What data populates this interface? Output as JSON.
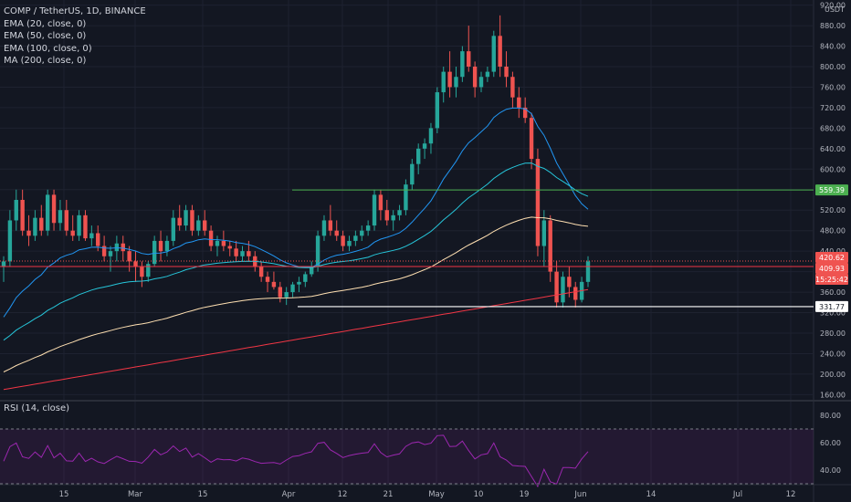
{
  "header": {
    "symbol_line": "COMP / TetherUS, 1D, BINANCE",
    "indicators": [
      "EMA (20, close, 0)",
      "EMA (50, close, 0)",
      "EMA (100, close, 0)",
      "MA (200, close, 0)"
    ],
    "rsi_label": "RSI (14, close)"
  },
  "price_axis": {
    "currency": "USDT",
    "ticks": [
      "920.00",
      "880.00",
      "840.00",
      "800.00",
      "760.00",
      "720.00",
      "680.00",
      "640.00",
      "600.00",
      "560.00",
      "520.00",
      "480.00",
      "440.00",
      "400.00",
      "360.00",
      "320.00",
      "280.00",
      "240.00",
      "200.00",
      "160.00"
    ],
    "badges": {
      "resistance_green": "559.39",
      "last_price": "420.62",
      "red_level": "409.93",
      "countdown": "15:25:42",
      "support_white": "331.77"
    }
  },
  "rsi_axis": {
    "ticks": [
      "80.00",
      "60.00",
      "40.00"
    ]
  },
  "time_axis": {
    "ticks": [
      "15",
      "Mar",
      "15",
      "Apr",
      "12",
      "21",
      "May",
      "10",
      "19",
      "Jun",
      "14",
      "Jul",
      "12"
    ]
  },
  "colors": {
    "background": "#131722",
    "up": "#26a69a",
    "down": "#ef5350",
    "ema20": "#2196f3",
    "ema50": "#26c6da",
    "ema100": "#ffe0b2",
    "ma200": "#f23645",
    "rsi": "#9c27b0",
    "green_level": "#4caf50",
    "red_level": "#f23645",
    "white_level": "#ffffff"
  },
  "chart_data": {
    "type": "candlestick",
    "title": "COMP / TetherUS, 1D, BINANCE",
    "ylim": [
      150,
      930
    ],
    "horizontal_levels": [
      {
        "name": "resistance",
        "value": 559.39,
        "color": "green"
      },
      {
        "name": "level",
        "value": 409.93,
        "color": "red"
      },
      {
        "name": "support",
        "value": 331.77,
        "color": "white"
      }
    ],
    "ohlc_approx": [
      [
        410,
        430,
        380,
        420
      ],
      [
        420,
        520,
        410,
        500
      ],
      [
        500,
        560,
        480,
        540
      ],
      [
        540,
        560,
        470,
        480
      ],
      [
        480,
        510,
        450,
        470
      ],
      [
        470,
        520,
        460,
        505
      ],
      [
        505,
        530,
        470,
        480
      ],
      [
        480,
        560,
        470,
        550
      ],
      [
        550,
        560,
        480,
        495
      ],
      [
        495,
        540,
        480,
        520
      ],
      [
        520,
        540,
        470,
        480
      ],
      [
        480,
        510,
        460,
        470
      ],
      [
        470,
        520,
        460,
        510
      ],
      [
        510,
        520,
        460,
        465
      ],
      [
        465,
        490,
        450,
        475
      ],
      [
        475,
        490,
        440,
        450
      ],
      [
        450,
        470,
        420,
        430
      ],
      [
        430,
        450,
        400,
        440
      ],
      [
        440,
        470,
        420,
        455
      ],
      [
        455,
        470,
        420,
        440
      ],
      [
        440,
        450,
        400,
        420
      ],
      [
        420,
        440,
        380,
        410
      ],
      [
        410,
        420,
        370,
        390
      ],
      [
        390,
        420,
        380,
        415
      ],
      [
        415,
        470,
        410,
        460
      ],
      [
        460,
        480,
        420,
        440
      ],
      [
        440,
        470,
        430,
        460
      ],
      [
        460,
        520,
        450,
        505
      ],
      [
        505,
        530,
        480,
        490
      ],
      [
        490,
        530,
        480,
        520
      ],
      [
        520,
        530,
        470,
        480
      ],
      [
        480,
        510,
        470,
        500
      ],
      [
        500,
        520,
        470,
        480
      ],
      [
        480,
        490,
        440,
        450
      ],
      [
        450,
        470,
        430,
        460
      ],
      [
        460,
        480,
        440,
        450
      ],
      [
        450,
        460,
        430,
        445
      ],
      [
        445,
        460,
        420,
        430
      ],
      [
        430,
        450,
        420,
        440
      ],
      [
        440,
        460,
        420,
        430
      ],
      [
        430,
        440,
        400,
        410
      ],
      [
        410,
        420,
        380,
        390
      ],
      [
        390,
        400,
        360,
        380
      ],
      [
        380,
        400,
        365,
        370
      ],
      [
        370,
        380,
        340,
        350
      ],
      [
        350,
        370,
        335,
        360
      ],
      [
        360,
        380,
        350,
        375
      ],
      [
        375,
        390,
        360,
        380
      ],
      [
        380,
        400,
        370,
        395
      ],
      [
        395,
        420,
        390,
        410
      ],
      [
        410,
        480,
        400,
        470
      ],
      [
        470,
        510,
        460,
        500
      ],
      [
        500,
        530,
        470,
        480
      ],
      [
        480,
        500,
        460,
        470
      ],
      [
        470,
        480,
        440,
        450
      ],
      [
        450,
        470,
        440,
        460
      ],
      [
        460,
        480,
        450,
        470
      ],
      [
        470,
        490,
        460,
        480
      ],
      [
        480,
        500,
        470,
        490
      ],
      [
        490,
        560,
        480,
        550
      ],
      [
        550,
        560,
        500,
        520
      ],
      [
        520,
        540,
        490,
        500
      ],
      [
        500,
        520,
        480,
        510
      ],
      [
        510,
        530,
        500,
        520
      ],
      [
        520,
        580,
        510,
        570
      ],
      [
        570,
        620,
        560,
        610
      ],
      [
        610,
        650,
        590,
        640
      ],
      [
        640,
        660,
        620,
        650
      ],
      [
        650,
        690,
        630,
        680
      ],
      [
        680,
        760,
        670,
        750
      ],
      [
        750,
        800,
        730,
        790
      ],
      [
        790,
        830,
        740,
        760
      ],
      [
        760,
        800,
        740,
        780
      ],
      [
        780,
        840,
        770,
        830
      ],
      [
        830,
        880,
        790,
        800
      ],
      [
        800,
        810,
        740,
        760
      ],
      [
        760,
        790,
        750,
        780
      ],
      [
        780,
        800,
        770,
        790
      ],
      [
        790,
        870,
        780,
        860
      ],
      [
        860,
        900,
        780,
        800
      ],
      [
        800,
        830,
        760,
        780
      ],
      [
        780,
        790,
        720,
        740
      ],
      [
        740,
        760,
        700,
        720
      ],
      [
        720,
        740,
        690,
        700
      ],
      [
        700,
        710,
        600,
        620
      ],
      [
        620,
        640,
        430,
        450
      ],
      [
        450,
        520,
        410,
        500
      ],
      [
        500,
        510,
        380,
        400
      ],
      [
        400,
        420,
        330,
        340
      ],
      [
        340,
        400,
        330,
        390
      ],
      [
        390,
        410,
        350,
        370
      ],
      [
        370,
        380,
        330,
        345
      ],
      [
        345,
        390,
        340,
        380
      ],
      [
        380,
        430,
        370,
        420
      ]
    ],
    "rsi_ylim": [
      30,
      90
    ],
    "rsi_levels": [
      70,
      30
    ]
  }
}
